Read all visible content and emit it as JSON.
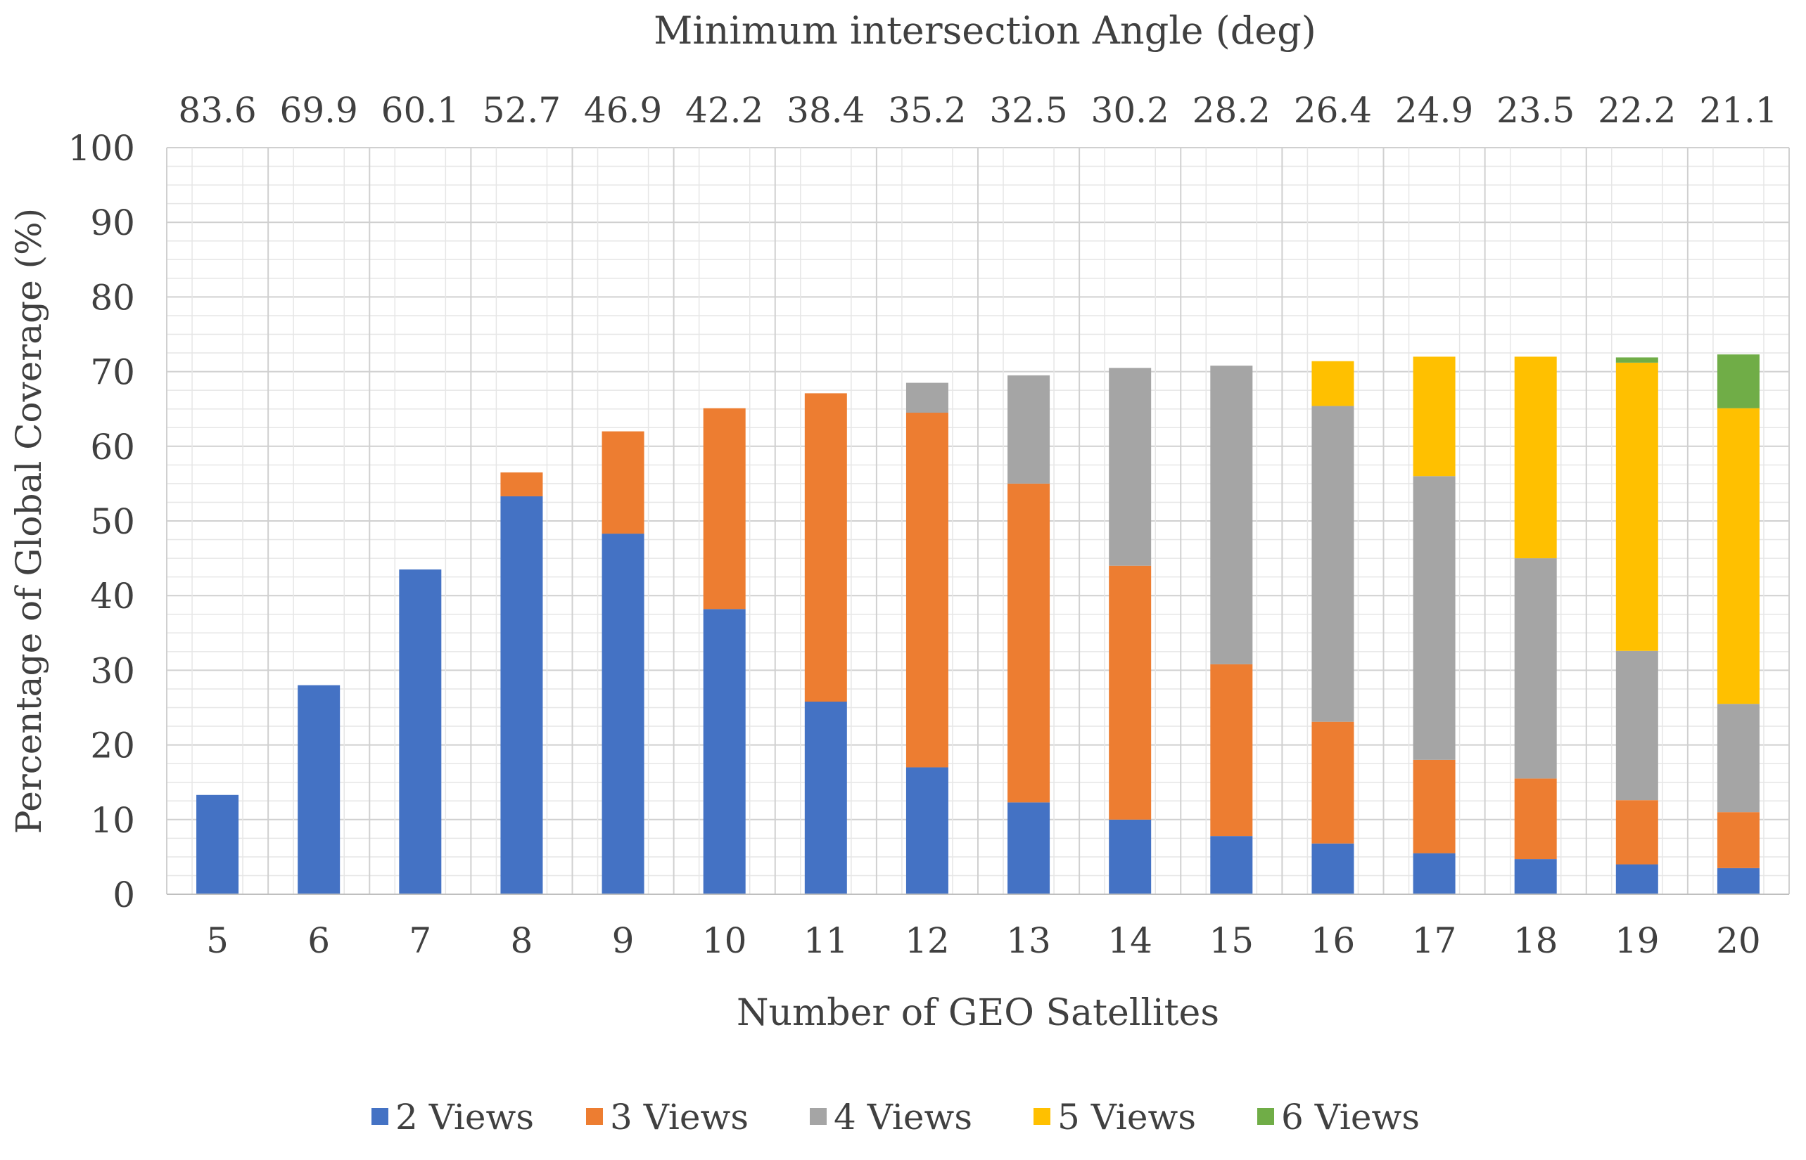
{
  "chart_data": {
    "type": "bar",
    "stacked": true,
    "title": "Minimum intersection Angle (deg)",
    "xlabel": "Number of GEO Satellites",
    "ylabel": "Percentage of Global Coverage (%)",
    "ylim": [
      0,
      100
    ],
    "yticks": [
      0,
      10,
      20,
      30,
      40,
      50,
      60,
      70,
      80,
      90,
      100
    ],
    "grid": true,
    "legend_position": "bottom",
    "categories": [
      "5",
      "6",
      "7",
      "8",
      "9",
      "10",
      "11",
      "12",
      "13",
      "14",
      "15",
      "16",
      "17",
      "18",
      "19",
      "20"
    ],
    "top_axis_labels": [
      "83.6",
      "69.9",
      "60.1",
      "52.7",
      "46.9",
      "42.2",
      "38.4",
      "35.2",
      "32.5",
      "30.2",
      "28.2",
      "26.4",
      "24.9",
      "23.5",
      "22.2",
      "21.1"
    ],
    "series": [
      {
        "name": "2 Views",
        "color": "#4472C4",
        "values": [
          13.3,
          28.0,
          43.5,
          53.3,
          48.3,
          38.2,
          25.8,
          17.0,
          12.3,
          10.0,
          7.8,
          6.8,
          5.5,
          4.7,
          4.0,
          3.5
        ]
      },
      {
        "name": "3 Views",
        "color": "#ED7D31",
        "values": [
          0,
          0,
          0,
          3.2,
          13.7,
          26.9,
          41.3,
          47.5,
          42.7,
          34.0,
          23.0,
          16.3,
          12.5,
          10.8,
          8.6,
          7.5
        ]
      },
      {
        "name": "4 Views",
        "color": "#A5A5A5",
        "values": [
          0,
          0,
          0,
          0,
          0,
          0,
          0,
          4.0,
          14.5,
          26.5,
          40.0,
          42.3,
          38.0,
          29.5,
          20.0,
          14.5
        ]
      },
      {
        "name": "5 Views",
        "color": "#FFC000",
        "values": [
          0,
          0,
          0,
          0,
          0,
          0,
          0,
          0,
          0,
          0,
          0,
          6.0,
          16.0,
          27.0,
          38.6,
          39.6
        ]
      },
      {
        "name": "6 Views",
        "color": "#70AD47",
        "values": [
          0,
          0,
          0,
          0,
          0,
          0,
          0,
          0,
          0,
          0,
          0,
          0,
          0,
          0,
          0.7,
          7.2
        ]
      }
    ]
  }
}
